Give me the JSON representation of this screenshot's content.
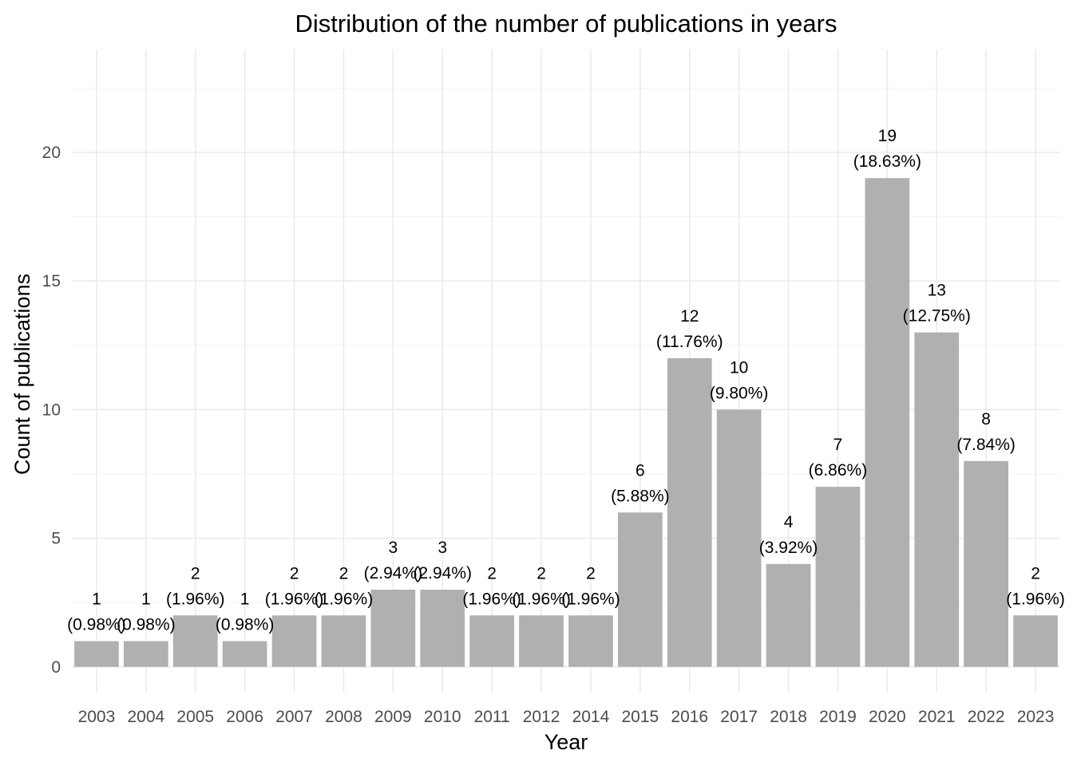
{
  "chart_data": {
    "type": "bar",
    "title": "Distribution of the number of publications in years",
    "xlabel": "Year",
    "ylabel": "Count of publications",
    "categories": [
      "2003",
      "2004",
      "2005",
      "2006",
      "2007",
      "2008",
      "2009",
      "2010",
      "2011",
      "2012",
      "2014",
      "2015",
      "2016",
      "2017",
      "2018",
      "2019",
      "2020",
      "2021",
      "2022",
      "2023"
    ],
    "values": [
      1,
      1,
      2,
      1,
      2,
      2,
      3,
      3,
      2,
      2,
      2,
      6,
      12,
      10,
      4,
      7,
      19,
      13,
      8,
      2
    ],
    "data_labels": [
      "(0.98%)",
      "(0.98%)",
      "(1.96%)",
      "(0.98%)",
      "(1.96%)",
      "(1.96%)",
      "(2.94%)",
      "(2.94%)",
      "(1.96%)",
      "(1.96%)",
      "(1.96%)",
      "(5.88%)",
      "(11.76%)",
      "(9.80%)",
      "(3.92%)",
      "(6.86%)",
      "(18.63%)",
      "(12.75%)",
      "(7.84%)",
      "(1.96%)"
    ],
    "ylim": [
      -1.0,
      24.0
    ],
    "yticks": [
      0,
      5,
      10,
      15,
      20
    ],
    "grid": true,
    "legend": "none",
    "bar_color": "#b0b0b0"
  }
}
